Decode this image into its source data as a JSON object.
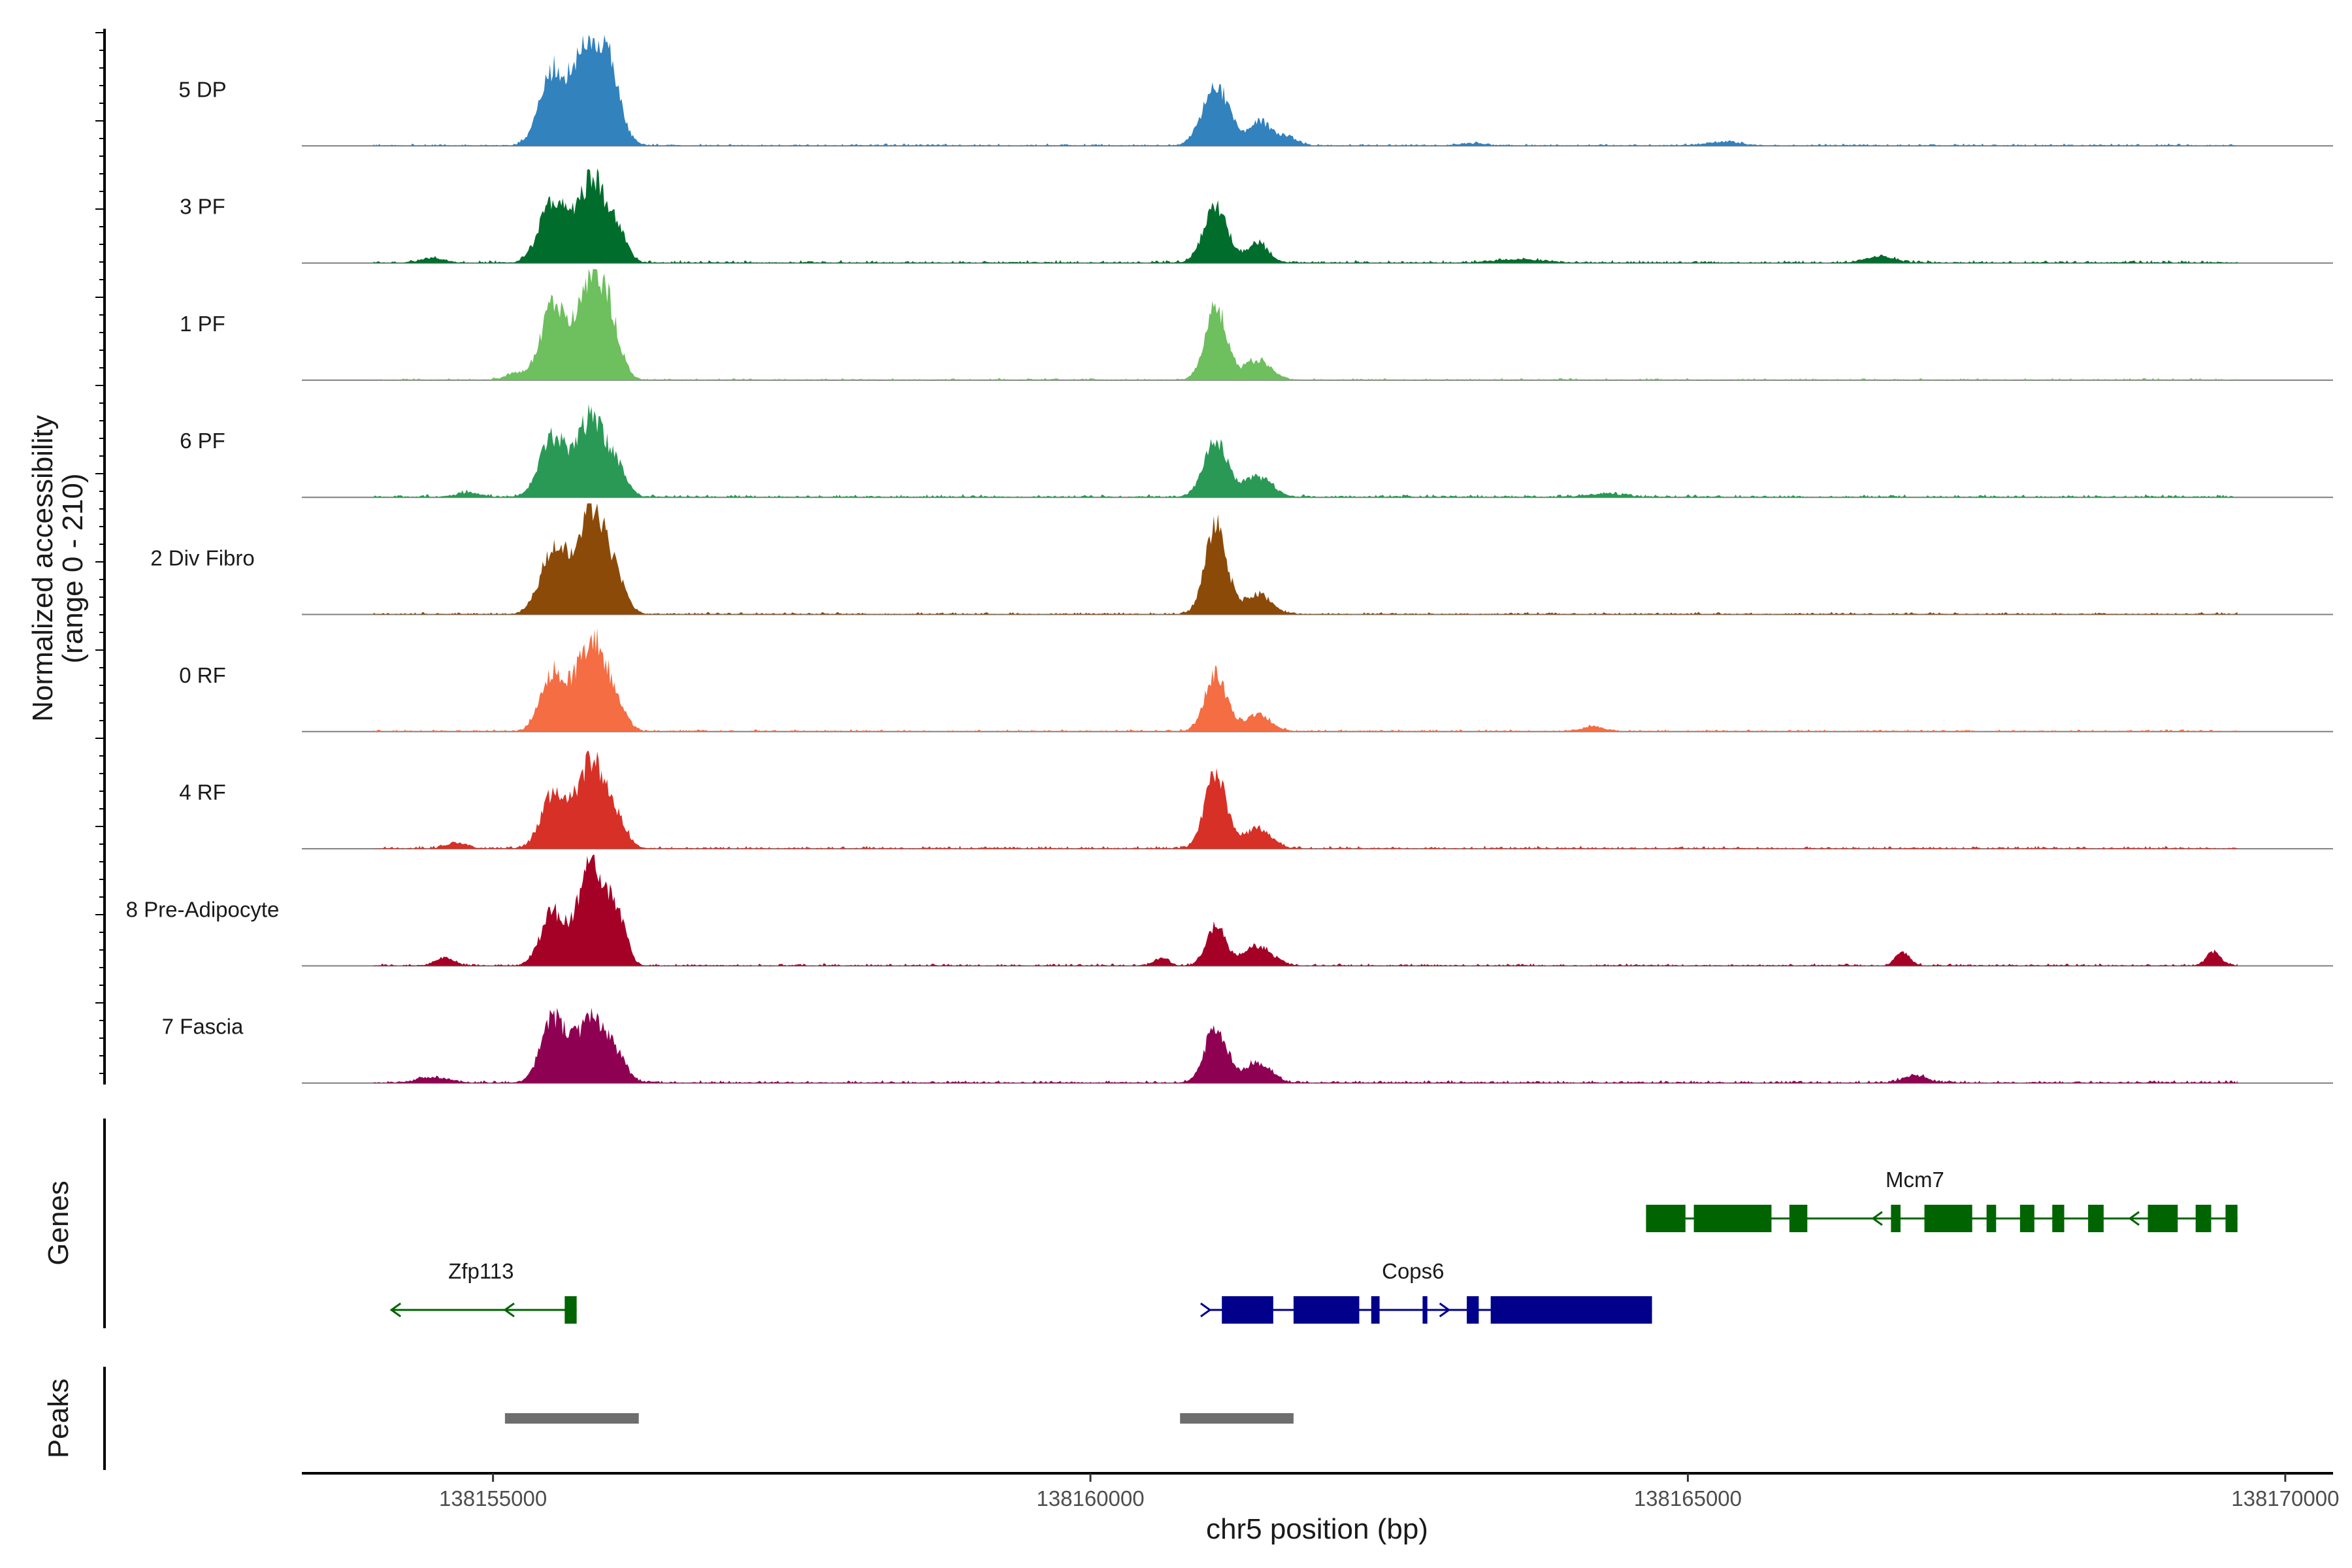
{
  "chart_data": {
    "type": "area",
    "title": "",
    "ylabel_line1": "Normalized accessibility",
    "ylabel_line2": "(range 0 - 210)",
    "y_range": [
      0,
      210
    ],
    "xlabel": "chr5 position (bp)",
    "xlim": [
      138153400,
      138170400
    ],
    "x_ticks": [
      138155000,
      138160000,
      138165000,
      138170000
    ],
    "x_tick_labels": [
      "138155000",
      "138160000",
      "138165000",
      "138170000"
    ],
    "data_extent": [
      138154000,
      138169600
    ],
    "tracks": [
      {
        "name": "5 DP",
        "color": "#3182bd",
        "peaks": [
          [
            138155500,
            0.62,
            110
          ],
          [
            138155830,
            0.96,
            140
          ],
          [
            138156000,
            0.26,
            80
          ],
          [
            138161050,
            0.55,
            110
          ],
          [
            138161420,
            0.22,
            90
          ],
          [
            138161650,
            0.08,
            80
          ],
          [
            138165300,
            0.03,
            160
          ],
          [
            138163200,
            0.02,
            120
          ]
        ],
        "noise": 0.012
      },
      {
        "name": "3 PF",
        "color": "#006d2c",
        "peaks": [
          [
            138155500,
            0.55,
            110
          ],
          [
            138155830,
            0.75,
            120
          ],
          [
            138156050,
            0.2,
            80
          ],
          [
            138161050,
            0.5,
            100
          ],
          [
            138161400,
            0.18,
            90
          ],
          [
            138166600,
            0.06,
            120
          ],
          [
            138163600,
            0.03,
            200
          ],
          [
            138154500,
            0.04,
            100
          ]
        ],
        "noise": 0.014
      },
      {
        "name": "1 PF",
        "color": "#6ebf5e",
        "peaks": [
          [
            138155500,
            0.65,
            100
          ],
          [
            138155830,
            0.95,
            130
          ],
          [
            138156000,
            0.22,
            80
          ],
          [
            138161050,
            0.65,
            90
          ],
          [
            138161400,
            0.18,
            110
          ],
          [
            138155200,
            0.06,
            90
          ]
        ],
        "noise": 0.01
      },
      {
        "name": "6 PF",
        "color": "#2a9955",
        "peaks": [
          [
            138155500,
            0.52,
            110
          ],
          [
            138155830,
            0.72,
            120
          ],
          [
            138156050,
            0.18,
            80
          ],
          [
            138161050,
            0.48,
            100
          ],
          [
            138161400,
            0.18,
            120
          ],
          [
            138164300,
            0.03,
            150
          ],
          [
            138154800,
            0.04,
            100
          ]
        ],
        "noise": 0.015
      },
      {
        "name": "2 Div Fibro",
        "color": "#8c4a08",
        "peaks": [
          [
            138155500,
            0.55,
            110
          ],
          [
            138155830,
            0.96,
            130
          ],
          [
            138156050,
            0.15,
            80
          ],
          [
            138161050,
            0.78,
            90
          ],
          [
            138161400,
            0.18,
            110
          ]
        ],
        "noise": 0.012
      },
      {
        "name": "0 RF",
        "color": "#f46d43",
        "peaks": [
          [
            138155500,
            0.52,
            100
          ],
          [
            138155830,
            0.82,
            130
          ],
          [
            138156050,
            0.12,
            80
          ],
          [
            138161050,
            0.52,
            90
          ],
          [
            138161400,
            0.15,
            110
          ],
          [
            138164200,
            0.04,
            100
          ]
        ],
        "noise": 0.012
      },
      {
        "name": "4 RF",
        "color": "#d73027",
        "peaks": [
          [
            138155500,
            0.48,
            100
          ],
          [
            138155830,
            0.78,
            130
          ],
          [
            138156050,
            0.14,
            80
          ],
          [
            138161050,
            0.68,
            90
          ],
          [
            138161400,
            0.18,
            110
          ],
          [
            138154700,
            0.05,
            90
          ]
        ],
        "noise": 0.014
      },
      {
        "name": "8 Pre-Adipocyte",
        "color": "#a50026",
        "peaks": [
          [
            138155500,
            0.48,
            100
          ],
          [
            138155830,
            0.98,
            110
          ],
          [
            138156050,
            0.4,
            70
          ],
          [
            138161050,
            0.35,
            80
          ],
          [
            138161400,
            0.18,
            120
          ],
          [
            138166800,
            0.12,
            60
          ],
          [
            138169400,
            0.13,
            60
          ],
          [
            138154600,
            0.07,
            80
          ],
          [
            138160600,
            0.07,
            60
          ]
        ],
        "noise": 0.012
      },
      {
        "name": "7 Fascia",
        "color": "#8e0152",
        "peaks": [
          [
            138155500,
            0.55,
            100
          ],
          [
            138155830,
            0.58,
            140
          ],
          [
            138156050,
            0.12,
            80
          ],
          [
            138161050,
            0.52,
            90
          ],
          [
            138161400,
            0.18,
            110
          ],
          [
            138166900,
            0.07,
            100
          ],
          [
            138154500,
            0.05,
            120
          ]
        ],
        "noise": 0.014
      }
    ],
    "genes_label": "Genes",
    "peaks_label": "Peaks",
    "genes": [
      {
        "name": "Mcm7",
        "strand": "-",
        "color": "#006400",
        "row": 1,
        "label_pos": 138166900,
        "intron": [
          138164650,
          138169600
        ],
        "exons": [
          [
            138164650,
            138164980
          ],
          [
            138165050,
            138165700
          ],
          [
            138165850,
            138166000
          ],
          [
            138166700,
            138166780
          ],
          [
            138166980,
            138167380
          ],
          [
            138167500,
            138167580
          ],
          [
            138167780,
            138167900
          ],
          [
            138168050,
            138168150
          ],
          [
            138168350,
            138168480
          ],
          [
            138168850,
            138169100
          ],
          [
            138169250,
            138169380
          ],
          [
            138169500,
            138169600
          ]
        ],
        "arrows": [
          138166550,
          138168700
        ]
      },
      {
        "name": "Zfp113",
        "strand": "-",
        "color": "#006400",
        "row": 2,
        "label_pos": 138154900,
        "intron": [
          138154150,
          138155700
        ],
        "exons": [
          [
            138155600,
            138155700
          ]
        ],
        "arrows": [
          138154150,
          138155100
        ]
      },
      {
        "name": "Cops6",
        "strand": "+",
        "color": "#00008b",
        "row": 2,
        "label_pos": 138162700,
        "intron": [
          138161000,
          138164700
        ],
        "exons": [
          [
            138161100,
            138161530
          ],
          [
            138161700,
            138162250
          ],
          [
            138162350,
            138162420
          ],
          [
            138162780,
            138162820
          ],
          [
            138163150,
            138163250
          ],
          [
            138163350,
            138164700
          ]
        ],
        "arrows": [
          138161000,
          138163000
        ]
      }
    ],
    "peak_regions": [
      [
        138155100,
        138156220
      ],
      [
        138160750,
        138161700
      ]
    ]
  }
}
